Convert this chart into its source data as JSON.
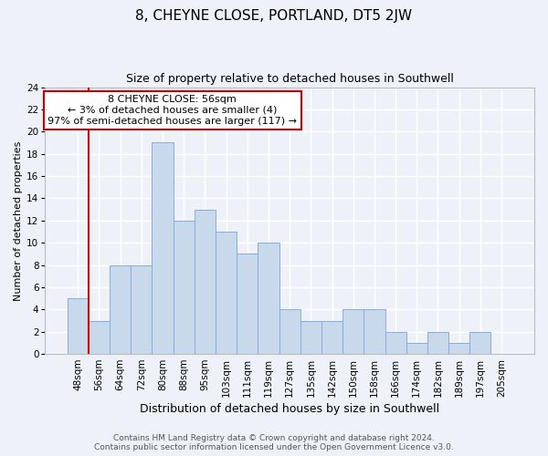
{
  "title": "8, CHEYNE CLOSE, PORTLAND, DT5 2JW",
  "subtitle": "Size of property relative to detached houses in Southwell",
  "xlabel": "Distribution of detached houses by size in Southwell",
  "ylabel": "Number of detached properties",
  "categories": [
    "48sqm",
    "56sqm",
    "64sqm",
    "72sqm",
    "80sqm",
    "88sqm",
    "95sqm",
    "103sqm",
    "111sqm",
    "119sqm",
    "127sqm",
    "135sqm",
    "142sqm",
    "150sqm",
    "158sqm",
    "166sqm",
    "174sqm",
    "182sqm",
    "189sqm",
    "197sqm",
    "205sqm"
  ],
  "values": [
    5,
    3,
    8,
    8,
    19,
    12,
    13,
    11,
    9,
    10,
    4,
    3,
    3,
    4,
    4,
    2,
    1,
    2,
    1,
    2,
    0
  ],
  "bar_color": "#c8d9ec",
  "bar_edge_color": "#89abe0",
  "highlight_line_color": "#cc0000",
  "highlight_line_index": 1,
  "ylim": [
    0,
    24
  ],
  "yticks": [
    0,
    2,
    4,
    6,
    8,
    10,
    12,
    14,
    16,
    18,
    20,
    22,
    24
  ],
  "annotation_title": "8 CHEYNE CLOSE: 56sqm",
  "annotation_line1": "← 3% of detached houses are smaller (4)",
  "annotation_line2": "97% of semi-detached houses are larger (117) →",
  "annotation_box_color": "#cc0000",
  "footer_line1": "Contains HM Land Registry data © Crown copyright and database right 2024.",
  "footer_line2": "Contains public sector information licensed under the Open Government Licence v3.0.",
  "background_color": "#eef2f8",
  "grid_color": "#ffffff",
  "title_fontsize": 11,
  "subtitle_fontsize": 9,
  "xlabel_fontsize": 9,
  "ylabel_fontsize": 8,
  "tick_fontsize": 7.5,
  "annotation_fontsize": 8,
  "footer_fontsize": 6.5
}
